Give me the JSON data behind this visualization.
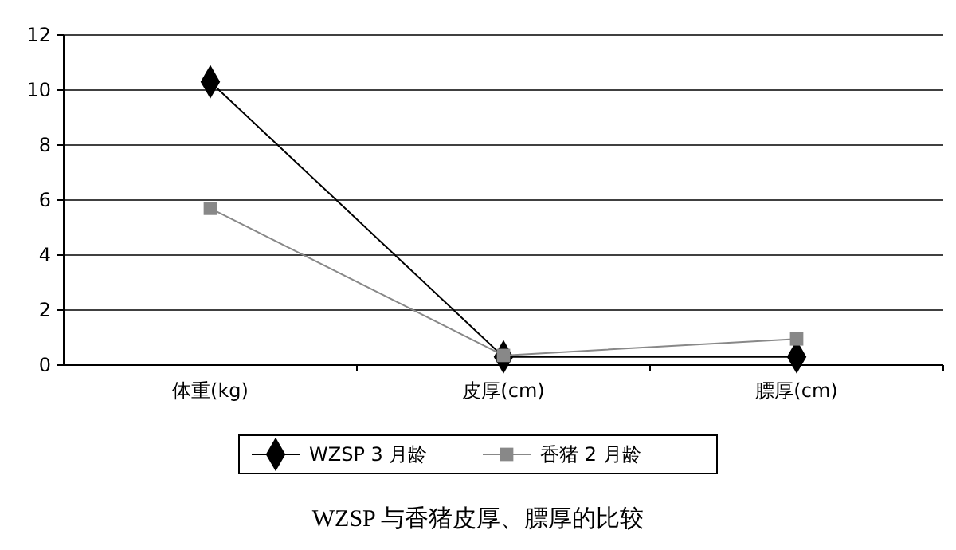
{
  "chart_data": {
    "type": "line",
    "title": "WZSP 与香猪皮厚、膘厚的比较",
    "categories": [
      "体重(kg)",
      "皮厚(cm)",
      "膘厚(cm)"
    ],
    "series": [
      {
        "name": "WZSP 3 月龄",
        "color": "#000000",
        "marker": "diamond",
        "values": [
          10.3,
          0.3,
          0.3
        ]
      },
      {
        "name": "香猪 2 月龄",
        "color": "#888888",
        "marker": "square",
        "values": [
          5.7,
          0.35,
          0.95
        ]
      }
    ],
    "ylim": [
      0,
      12
    ],
    "yticks": [
      0,
      2,
      4,
      6,
      8,
      10,
      12
    ],
    "grid": "y",
    "legend": "bottom"
  }
}
